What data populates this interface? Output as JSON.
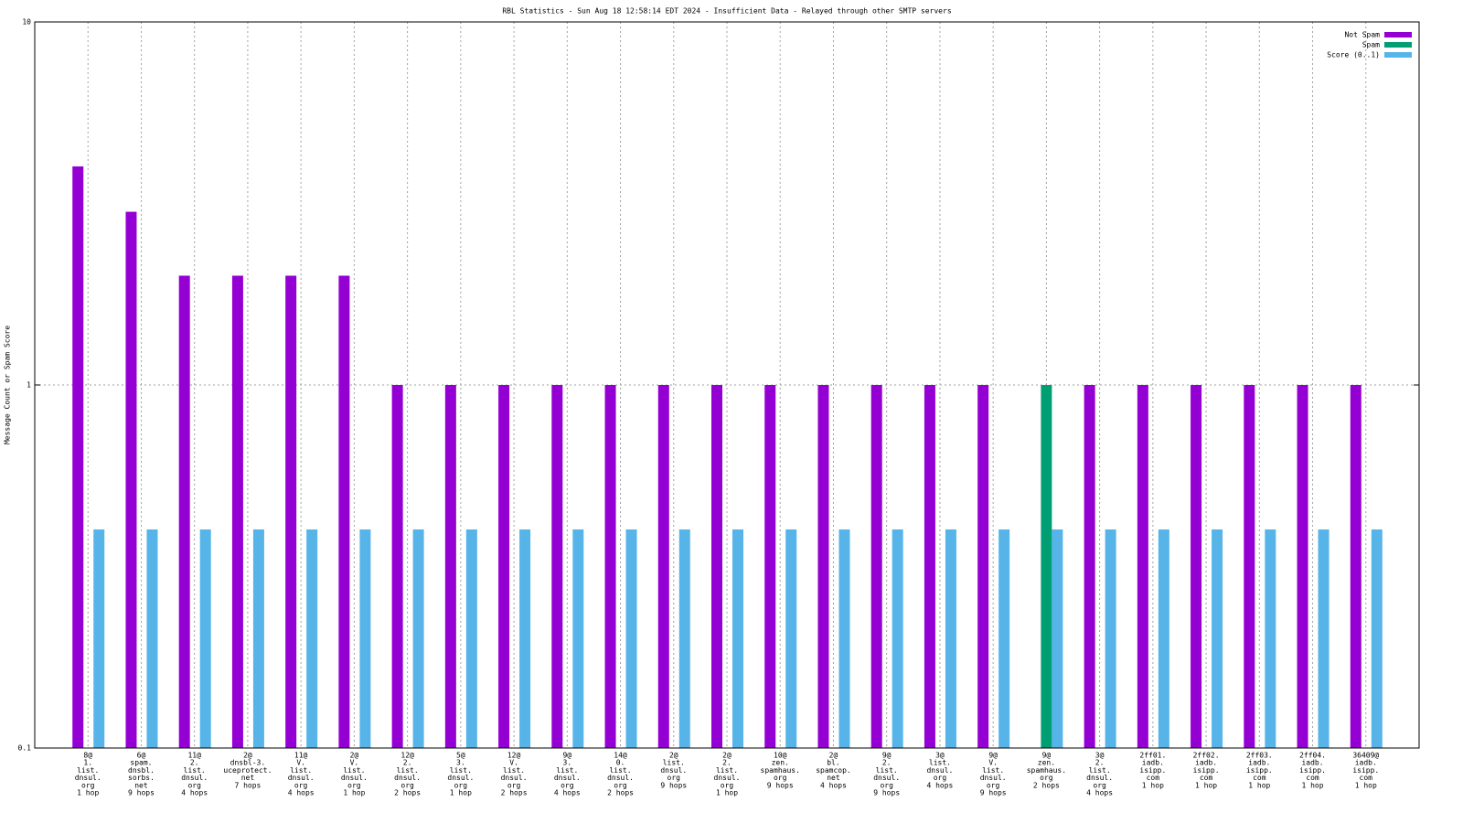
{
  "chart_data": {
    "type": "bar",
    "title": "RBL Statistics - Sun Aug 18 12:58:14 EDT 2024 - Insufficient Data - Relayed through other SMTP servers",
    "y_label": "Message Count or Spam Score",
    "categories": [
      [
        "8@",
        "1.",
        "list.",
        "dnsul.",
        "org",
        "1 hop"
      ],
      [
        "6@",
        "spam.",
        "dnsbl.",
        "sorbs.",
        "net",
        "9 hops"
      ],
      [
        "11@",
        "2.",
        "list.",
        "dnsul.",
        "org",
        "4 hops"
      ],
      [
        "2@",
        "dnsbl-3.",
        "uceprotect.",
        "net",
        "7 hops"
      ],
      [
        "11@",
        "V.",
        "list.",
        "dnsul.",
        "org",
        "4 hops"
      ],
      [
        "2@",
        "V.",
        "list.",
        "dnsul.",
        "org",
        "1 hop"
      ],
      [
        "12@",
        "2.",
        "list.",
        "dnsul.",
        "org",
        "2 hops"
      ],
      [
        "5@",
        "3.",
        "list.",
        "dnsul.",
        "org",
        "1 hop"
      ],
      [
        "12@",
        "V.",
        "list.",
        "dnsul.",
        "org",
        "2 hops"
      ],
      [
        "9@",
        "3.",
        "list.",
        "dnsul.",
        "org",
        "4 hops"
      ],
      [
        "14@",
        "0.",
        "list.",
        "dnsul.",
        "org",
        "2 hops"
      ],
      [
        "2@",
        "list.",
        "dnsul.",
        "org",
        "9 hops"
      ],
      [
        "2@",
        "2.",
        "list.",
        "dnsul.",
        "org",
        "1 hop"
      ],
      [
        "10@",
        "zen.",
        "spamhaus.",
        "org",
        "9 hops"
      ],
      [
        "2@",
        "bl.",
        "spamcop.",
        "net",
        "4 hops"
      ],
      [
        "9@",
        "2.",
        "list.",
        "dnsul.",
        "org",
        "9 hops"
      ],
      [
        "3@",
        "list.",
        "dnsul.",
        "org",
        "4 hops"
      ],
      [
        "9@",
        "V.",
        "list.",
        "dnsul.",
        "org",
        "9 hops"
      ],
      [
        "9@",
        "zen.",
        "spamhaus.",
        "org",
        "2 hops"
      ],
      [
        "3@",
        "2.",
        "list.",
        "dnsul.",
        "org",
        "4 hops"
      ],
      [
        "2ff01.",
        "iadb.",
        "isipp.",
        "com",
        "1 hop"
      ],
      [
        "2ff02.",
        "iadb.",
        "isipp.",
        "com",
        "1 hop"
      ],
      [
        "2ff03.",
        "iadb.",
        "isipp.",
        "com",
        "1 hop"
      ],
      [
        "2ff04.",
        "iadb.",
        "isipp.",
        "com",
        "1 hop"
      ],
      [
        "36409@",
        "iadb.",
        "isipp.",
        "com",
        "1 hop"
      ]
    ],
    "series": [
      {
        "name": "Not Spam",
        "color": "#9400d3",
        "values": [
          4,
          3,
          2,
          2,
          2,
          2,
          1,
          1,
          1,
          1,
          1,
          1,
          1,
          1,
          1,
          1,
          1,
          1,
          null,
          1,
          1,
          1,
          1,
          1,
          1
        ]
      },
      {
        "name": "Spam",
        "color": "#009e73",
        "values": [
          null,
          null,
          null,
          null,
          null,
          null,
          null,
          null,
          null,
          null,
          null,
          null,
          null,
          null,
          null,
          null,
          null,
          null,
          1,
          null,
          null,
          null,
          null,
          null,
          null
        ]
      },
      {
        "name": "Score (0..1)",
        "color": "#56b4e9",
        "values": [
          0.4,
          0.4,
          0.4,
          0.4,
          0.4,
          0.4,
          0.4,
          0.4,
          0.4,
          0.4,
          0.4,
          0.4,
          0.4,
          0.4,
          0.4,
          0.4,
          0.4,
          0.4,
          0.4,
          0.4,
          0.4,
          0.4,
          0.4,
          0.4,
          0.4
        ]
      }
    ],
    "ylim": [
      0.1,
      10
    ],
    "yticks": [
      0.1,
      1,
      10
    ],
    "ylog": true,
    "grid": true,
    "legend": "top-right"
  }
}
